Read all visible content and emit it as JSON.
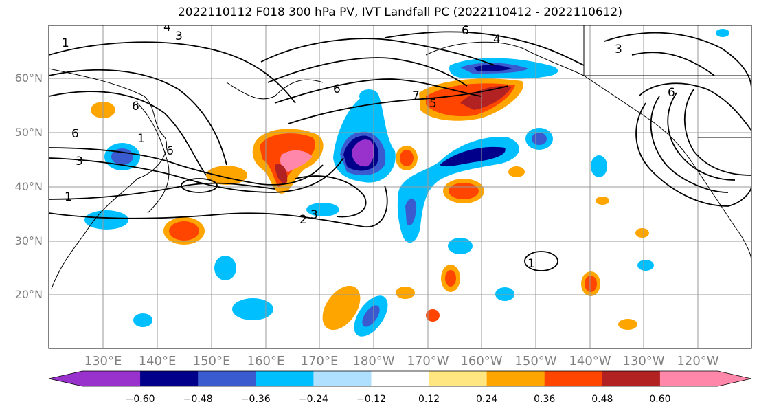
{
  "title": "2022110112 F018 300 hPa PV, IVT Landfall PC (2022110412 - 2022110612)",
  "lat_labels": [
    "60°N",
    "50°N",
    "40°N",
    "30°N",
    "20°N"
  ],
  "lon_labels": [
    "130°E",
    "140°E",
    "150°E",
    "160°E",
    "170°E",
    "180°W",
    "170°W",
    "160°W",
    "150°W",
    "140°W",
    "130°W",
    "120°W"
  ],
  "colorbar": {
    "colors": [
      "#9932cc",
      "#00008b",
      "#3a5bcf",
      "#00bfff",
      "#b0e0ff",
      "#ffffff",
      "#ffe680",
      "#ffa500",
      "#ff4500",
      "#b22222",
      "#ff88aa"
    ],
    "tick_labels": [
      "−0.60",
      "−0.48",
      "−0.36",
      "−0.24",
      "−0.12",
      "0.12",
      "0.24",
      "0.36",
      "0.48",
      "0.60"
    ]
  },
  "contour_labels": [
    "1",
    "4",
    "3",
    "6",
    "6",
    "7",
    "4",
    "3",
    "6",
    "6",
    "3",
    "6",
    "1",
    "2",
    "3",
    "5",
    "1",
    "6",
    "1"
  ]
}
